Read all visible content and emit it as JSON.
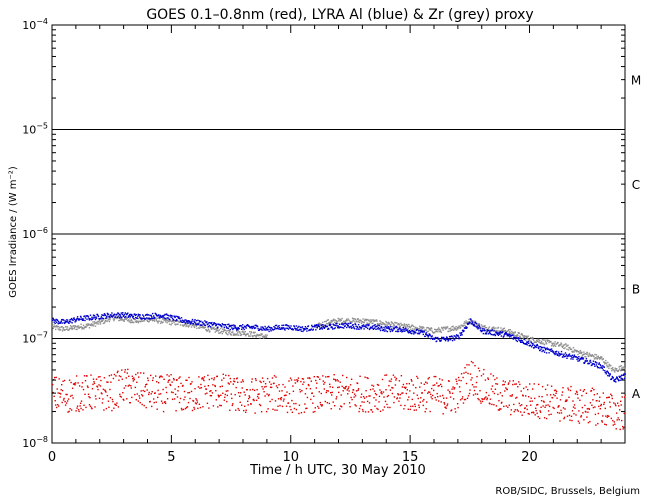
{
  "chart_data": {
    "type": "scatter",
    "title": "GOES 0.1–0.8nm (red), LYRA Al (blue) & Zr (grey) proxy",
    "xlabel": "Time / h UTC, 30 May 2010",
    "ylabel": "GOES Irradiance / (W m⁻²)",
    "credit": "ROB/SIDC, Brussels, Belgium",
    "xlim": [
      0,
      24
    ],
    "ylim": [
      1e-08,
      0.0001
    ],
    "yscale": "log",
    "x_ticks": [
      {
        "value": 0,
        "label": "0"
      },
      {
        "value": 5,
        "label": "5"
      },
      {
        "value": 10,
        "label": "10"
      },
      {
        "value": 15,
        "label": "15"
      },
      {
        "value": 20,
        "label": "20"
      }
    ],
    "y_ticks": [
      {
        "value": 1e-08,
        "base": "10",
        "exp": "−8"
      },
      {
        "value": 1e-07,
        "base": "10",
        "exp": "−7"
      },
      {
        "value": 1e-06,
        "base": "10",
        "exp": "−6"
      },
      {
        "value": 1e-05,
        "base": "10",
        "exp": "−5"
      },
      {
        "value": 0.0001,
        "base": "10",
        "exp": "−4"
      }
    ],
    "class_lines": [
      1e-07,
      1e-06,
      1e-05
    ],
    "flare_classes": [
      {
        "label": "A",
        "value": 3e-08
      },
      {
        "label": "B",
        "value": 3e-07
      },
      {
        "label": "C",
        "value": 3e-06
      },
      {
        "label": "M",
        "value": 3e-05
      }
    ],
    "grid": false,
    "series": [
      {
        "name": "GOES 0.1–0.8nm",
        "color": "#e00000",
        "x": [
          0,
          0.5,
          1,
          1.5,
          2,
          2.5,
          3,
          3.5,
          4,
          4.5,
          5,
          5.5,
          6,
          6.5,
          7,
          7.5,
          8,
          8.5,
          9,
          9.5,
          10,
          10.5,
          11,
          11.5,
          12,
          12.5,
          13,
          13.5,
          14,
          14.5,
          15,
          15.5,
          16,
          16.5,
          17,
          17.5,
          18,
          18.5,
          19,
          19.5,
          20,
          20.5,
          21,
          21.5,
          22,
          22.5,
          23,
          23.5,
          24
        ],
        "values": [
          3e-08,
          2.9e-08,
          3e-08,
          3.1e-08,
          3e-08,
          3.1e-08,
          3.6e-08,
          3.3e-08,
          3.1e-08,
          3e-08,
          3.1e-08,
          2.9e-08,
          3e-08,
          3.2e-08,
          3.2e-08,
          3e-08,
          2.8e-08,
          2.9e-08,
          3e-08,
          3e-08,
          2.9e-08,
          2.9e-08,
          3e-08,
          3e-08,
          3.1e-08,
          3e-08,
          3e-08,
          3e-08,
          3.1e-08,
          3e-08,
          3e-08,
          3e-08,
          3e-08,
          2.8e-08,
          3e-08,
          4.5e-08,
          3.5e-08,
          3e-08,
          2.8e-08,
          2.7e-08,
          2.6e-08,
          2.6e-08,
          2.4e-08,
          2.4e-08,
          2.3e-08,
          2.3e-08,
          2.2e-08,
          2e-08,
          2e-08
        ]
      },
      {
        "name": "LYRA Al",
        "color": "#0000cc",
        "x": [
          0,
          0.5,
          1,
          1.5,
          2,
          2.5,
          3,
          3.5,
          4,
          4.5,
          5,
          5.5,
          6,
          6.5,
          7,
          7.5,
          8,
          8.5,
          9,
          9.5,
          10,
          10.5,
          11,
          11.5,
          12,
          12.5,
          13,
          13.5,
          14,
          14.5,
          15,
          15.5,
          16,
          16.5,
          17,
          17.5,
          18,
          18.5,
          19,
          19.5,
          20,
          20.5,
          21,
          21.5,
          22,
          22.5,
          23,
          23.5,
          24
        ],
        "values": [
          1.5e-07,
          1.45e-07,
          1.55e-07,
          1.6e-07,
          1.65e-07,
          1.7e-07,
          1.7e-07,
          1.65e-07,
          1.65e-07,
          1.7e-07,
          1.6e-07,
          1.5e-07,
          1.45e-07,
          1.4e-07,
          1.35e-07,
          1.3e-07,
          1.3e-07,
          1.3e-07,
          1.25e-07,
          1.3e-07,
          1.3e-07,
          1.25e-07,
          1.3e-07,
          1.3e-07,
          1.35e-07,
          1.35e-07,
          1.3e-07,
          1.3e-07,
          1.25e-07,
          1.25e-07,
          1.2e-07,
          1.15e-07,
          1e-07,
          1e-07,
          1.05e-07,
          1.5e-07,
          1.2e-07,
          1.15e-07,
          1.1e-07,
          1e-07,
          9e-08,
          8e-08,
          7.5e-08,
          7e-08,
          6.5e-08,
          6e-08,
          5.5e-08,
          4e-08,
          4.5e-08
        ]
      },
      {
        "name": "LYRA Zr",
        "color": "#909090",
        "x": [
          0,
          0.5,
          1,
          1.5,
          2,
          2.5,
          3,
          3.5,
          4,
          4.5,
          5,
          5.5,
          6,
          6.5,
          7,
          7.5,
          8,
          8.5,
          9,
          9.5,
          10,
          10.5,
          11,
          11.5,
          12,
          12.5,
          13,
          13.5,
          14,
          14.5,
          15,
          15.5,
          16,
          16.5,
          17,
          17.5,
          18,
          18.5,
          19,
          19.5,
          20,
          20.5,
          21,
          21.5,
          22,
          22.5,
          23,
          23.5,
          24
        ],
        "values": [
          1.3e-07,
          1.25e-07,
          1.3e-07,
          1.35e-07,
          1.45e-07,
          1.6e-07,
          1.55e-07,
          1.5e-07,
          1.55e-07,
          1.5e-07,
          1.45e-07,
          1.4e-07,
          1.35e-07,
          1.25e-07,
          1.2e-07,
          1.15e-07,
          1.15e-07,
          1.1e-07,
          1.05e-07,
          null,
          null,
          null,
          1.3e-07,
          1.45e-07,
          1.5e-07,
          1.5e-07,
          1.5e-07,
          1.45e-07,
          1.4e-07,
          1.35e-07,
          1.3e-07,
          1.25e-07,
          1.2e-07,
          1.25e-07,
          1.3e-07,
          1.5e-07,
          1.3e-07,
          1.25e-07,
          1.2e-07,
          1.1e-07,
          1e-07,
          9.5e-08,
          9e-08,
          8.5e-08,
          7.5e-08,
          7e-08,
          6.5e-08,
          5e-08,
          5.5e-08
        ]
      }
    ]
  }
}
